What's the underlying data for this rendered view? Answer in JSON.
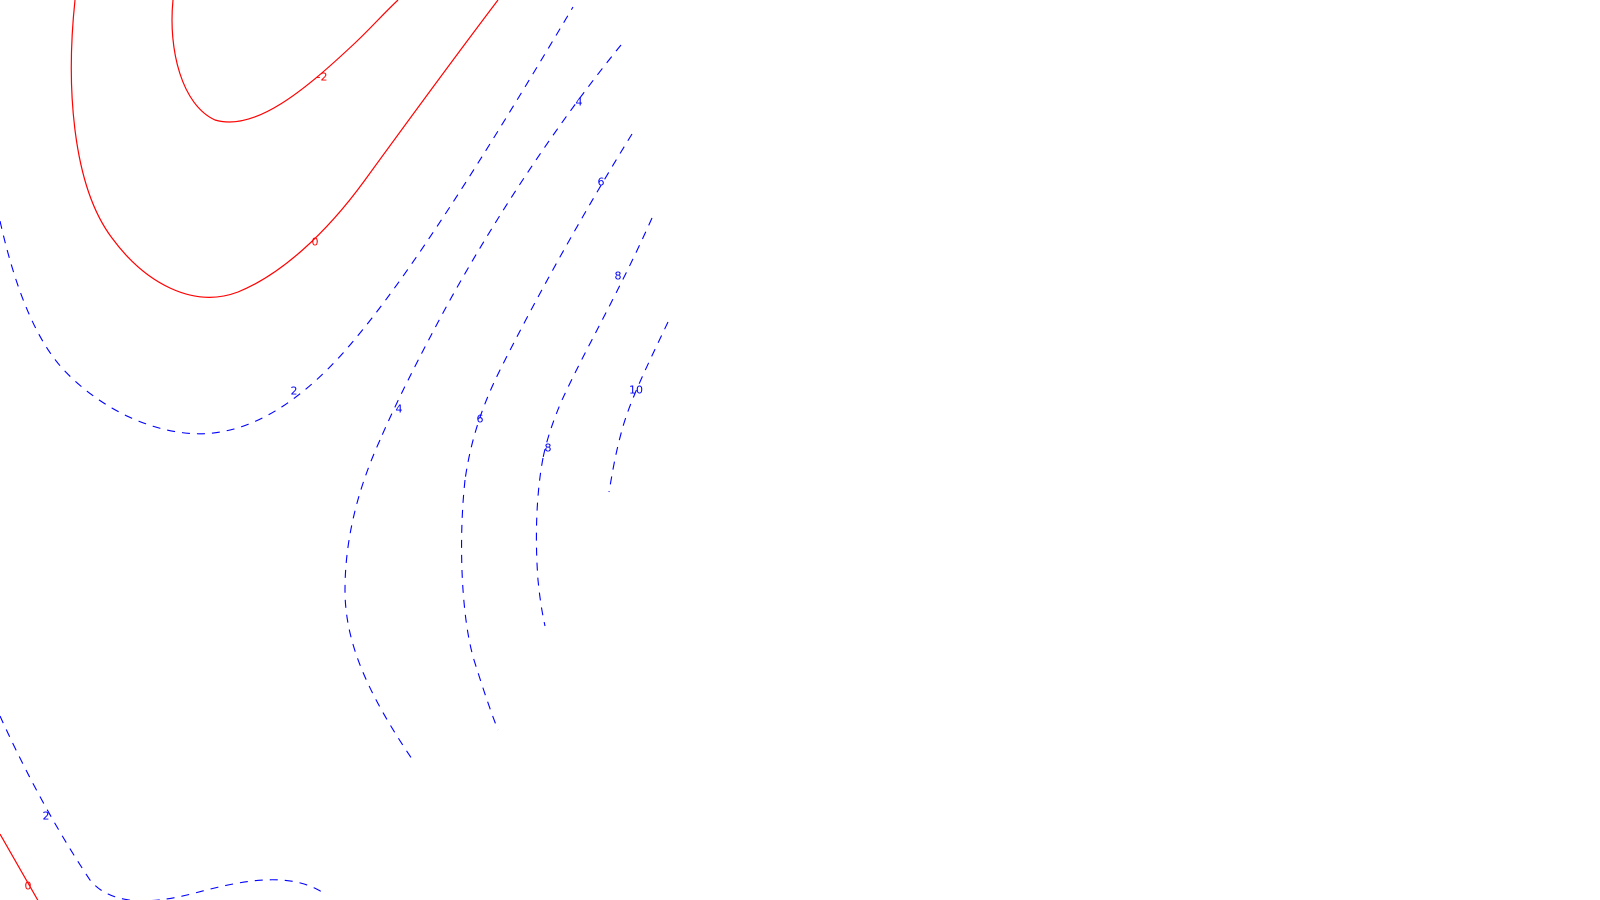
{
  "chart_data": {
    "type": "contour",
    "title": "",
    "xlabel": "",
    "ylabel": "",
    "colors": {
      "negative_or_zero": "#ff0000",
      "positive": "#0000ff",
      "background": "#ffffff"
    },
    "line_styles": {
      "negative_or_zero": "solid",
      "positive": "dashed"
    },
    "contour_levels": [
      {
        "level": -2,
        "label": "-2",
        "count": 1
      },
      {
        "level": 0,
        "label": "0",
        "count": 2
      },
      {
        "level": 2,
        "label": "2",
        "count": 2
      },
      {
        "level": 4,
        "label": "4",
        "count": 2
      },
      {
        "level": 6,
        "label": "6",
        "count": 2
      },
      {
        "level": 8,
        "label": "8",
        "count": 2
      },
      {
        "level": 10,
        "label": "10",
        "count": 1
      }
    ]
  }
}
